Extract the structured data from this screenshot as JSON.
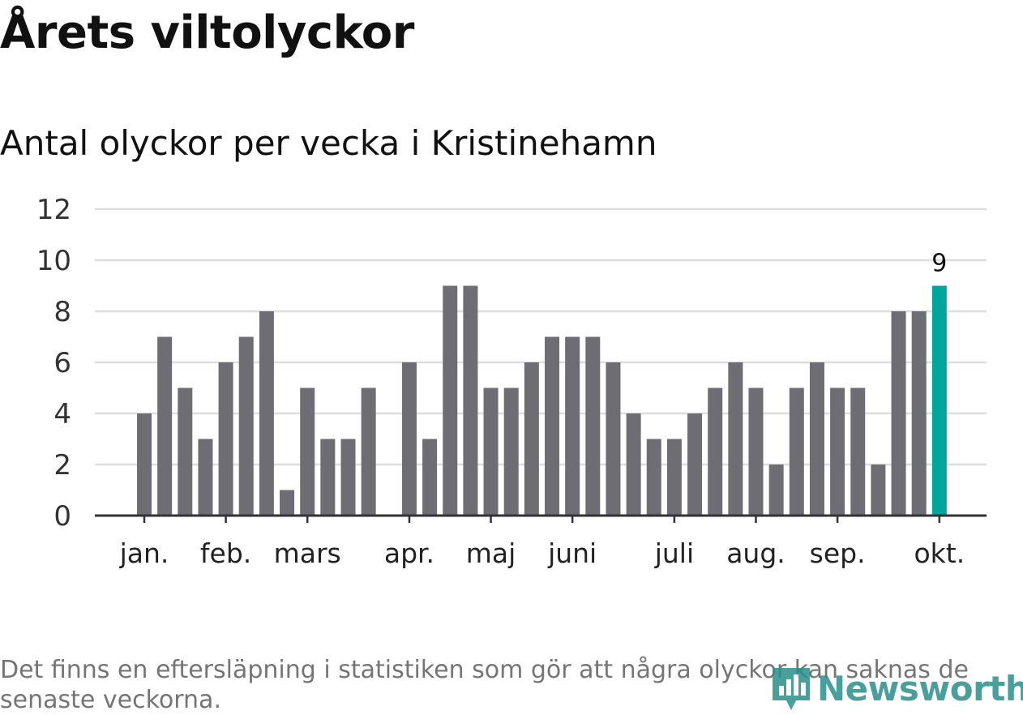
{
  "header": {
    "title": "Årets viltolyckor",
    "subtitle": "Antal olyckor per vecka i Kristinehamn"
  },
  "footer": {
    "note": "Det finns en eftersläpning i statistiken som gör att några olyckor kan saknas de senaste veckorna.",
    "brand": "Newsworthy",
    "brand_icon": "bar-chart-icon"
  },
  "colors": {
    "bar": "#6e6d73",
    "highlight": "#00a69c",
    "grid": "#dedede",
    "axis": "#333333",
    "brand": "#2a8f8b"
  },
  "chart_data": {
    "type": "bar",
    "title": "Antal olyckor per vecka i Kristinehamn",
    "xlabel": "",
    "ylabel": "",
    "ylim": [
      0,
      12
    ],
    "yticks": [
      0,
      2,
      4,
      6,
      8,
      10,
      12
    ],
    "grid": true,
    "weeks": [
      1,
      2,
      3,
      4,
      5,
      6,
      7,
      8,
      9,
      10,
      11,
      12,
      13,
      14,
      15,
      16,
      17,
      18,
      19,
      20,
      21,
      22,
      23,
      24,
      25,
      26,
      27,
      28,
      29,
      30,
      31,
      32,
      33,
      34,
      35,
      36,
      37,
      38,
      39,
      40
    ],
    "values": [
      4,
      7,
      5,
      3,
      6,
      7,
      8,
      1,
      5,
      3,
      3,
      5,
      0,
      6,
      3,
      9,
      9,
      5,
      5,
      6,
      7,
      7,
      7,
      6,
      4,
      3,
      3,
      4,
      5,
      6,
      5,
      2,
      5,
      6,
      5,
      5,
      2,
      8,
      8,
      9
    ],
    "highlight_index": 39,
    "highlight_label": "9",
    "month_labels": [
      {
        "label": "jan.",
        "week": 1
      },
      {
        "label": "feb.",
        "week": 5
      },
      {
        "label": "mars",
        "week": 9
      },
      {
        "label": "apr.",
        "week": 14
      },
      {
        "label": "maj",
        "week": 18
      },
      {
        "label": "juni",
        "week": 22
      },
      {
        "label": "juli",
        "week": 27
      },
      {
        "label": "aug.",
        "week": 31
      },
      {
        "label": "sep.",
        "week": 35
      },
      {
        "label": "okt.",
        "week": 40
      }
    ]
  }
}
